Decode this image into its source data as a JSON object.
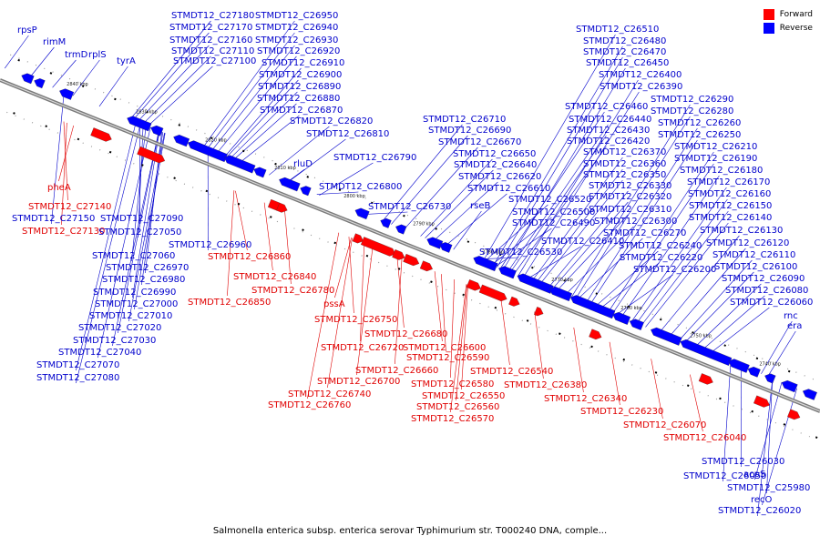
{
  "legend": {
    "forward_label": "Forward",
    "reverse_label": "Reverse",
    "forward_color": "#ff0000",
    "reverse_color": "#0000ff"
  },
  "caption": "Salmonella enterica subsp. enterica serovar Typhimurium str. T000240 DNA, comple...",
  "ticks": [
    "2840 kbp",
    "2830 kbp",
    "2820 kbp",
    "2810 kbp",
    "2800 kbp",
    "2790 kbp",
    "2780 kbp",
    "2770 kbp",
    "2760 kbp",
    "2750 kbp",
    "2740 kbp",
    "2730 kbp",
    "2720 kbp"
  ],
  "labels": [
    {
      "t": "rpsP",
      "s": "rev"
    },
    {
      "t": "rimM",
      "s": "rev"
    },
    {
      "t": "trmD",
      "s": "rev"
    },
    {
      "t": "rplS",
      "s": "rev"
    },
    {
      "t": "tyrA",
      "s": "rev"
    },
    {
      "t": "STMDT12_C27180",
      "s": "rev"
    },
    {
      "t": "STMDT12_C27170",
      "s": "rev"
    },
    {
      "t": "STMDT12_C27160",
      "s": "rev"
    },
    {
      "t": "STMDT12_C27110",
      "s": "rev"
    },
    {
      "t": "STMDT12_C27100",
      "s": "rev"
    },
    {
      "t": "STMDT12_C26950",
      "s": "rev"
    },
    {
      "t": "STMDT12_C26940",
      "s": "rev"
    },
    {
      "t": "STMDT12_C26930",
      "s": "rev"
    },
    {
      "t": "STMDT12_C26920",
      "s": "rev"
    },
    {
      "t": "STMDT12_C26910",
      "s": "rev"
    },
    {
      "t": "STMDT12_C26900",
      "s": "rev"
    },
    {
      "t": "STMDT12_C26890",
      "s": "rev"
    },
    {
      "t": "STMDT12_C26880",
      "s": "rev"
    },
    {
      "t": "STMDT12_C26870",
      "s": "rev"
    },
    {
      "t": "STMDT12_C26820",
      "s": "rev"
    },
    {
      "t": "STMDT12_C26810",
      "s": "rev"
    },
    {
      "t": "rluD",
      "s": "rev"
    },
    {
      "t": "STMDT12_C26790",
      "s": "rev"
    },
    {
      "t": "STMDT12_C26800",
      "s": "rev"
    },
    {
      "t": "STMDT12_C26730",
      "s": "rev"
    },
    {
      "t": "STMDT12_C26710",
      "s": "rev"
    },
    {
      "t": "STMDT12_C26690",
      "s": "rev"
    },
    {
      "t": "STMDT12_C26670",
      "s": "rev"
    },
    {
      "t": "STMDT12_C26650",
      "s": "rev"
    },
    {
      "t": "STMDT12_C26640",
      "s": "rev"
    },
    {
      "t": "STMDT12_C26620",
      "s": "rev"
    },
    {
      "t": "STMDT12_C26610",
      "s": "rev"
    },
    {
      "t": "rseB",
      "s": "rev"
    },
    {
      "t": "STMDT12_C26520",
      "s": "rev"
    },
    {
      "t": "STMDT12_C26500",
      "s": "rev"
    },
    {
      "t": "STMDT12_C26490",
      "s": "rev"
    },
    {
      "t": "STMDT12_C26530",
      "s": "rev"
    },
    {
      "t": "STMDT12_C26510",
      "s": "rev"
    },
    {
      "t": "STMDT12_C26480",
      "s": "rev"
    },
    {
      "t": "STMDT12_C26470",
      "s": "rev"
    },
    {
      "t": "STMDT12_C26450",
      "s": "rev"
    },
    {
      "t": "STMDT12_C26400",
      "s": "rev"
    },
    {
      "t": "STMDT12_C26390",
      "s": "rev"
    },
    {
      "t": "STMDT12_C26460",
      "s": "rev"
    },
    {
      "t": "STMDT12_C26440",
      "s": "rev"
    },
    {
      "t": "STMDT12_C26430",
      "s": "rev"
    },
    {
      "t": "STMDT12_C26420",
      "s": "rev"
    },
    {
      "t": "STMDT12_C26370",
      "s": "rev"
    },
    {
      "t": "STMDT12_C26360",
      "s": "rev"
    },
    {
      "t": "STMDT12_C26350",
      "s": "rev"
    },
    {
      "t": "STMDT12_C26330",
      "s": "rev"
    },
    {
      "t": "STMDT12_C26320",
      "s": "rev"
    },
    {
      "t": "STMDT12_C26310",
      "s": "rev"
    },
    {
      "t": "STMDT12_C26300",
      "s": "rev"
    },
    {
      "t": "STMDT12_C26410",
      "s": "rev"
    },
    {
      "t": "STMDT12_C26270",
      "s": "rev"
    },
    {
      "t": "STMDT12_C26240",
      "s": "rev"
    },
    {
      "t": "STMDT12_C26220",
      "s": "rev"
    },
    {
      "t": "STMDT12_C26200",
      "s": "rev"
    },
    {
      "t": "STMDT12_C26290",
      "s": "rev"
    },
    {
      "t": "STMDT12_C26280",
      "s": "rev"
    },
    {
      "t": "STMDT12_C26260",
      "s": "rev"
    },
    {
      "t": "STMDT12_C26250",
      "s": "rev"
    },
    {
      "t": "STMDT12_C26210",
      "s": "rev"
    },
    {
      "t": "STMDT12_C26190",
      "s": "rev"
    },
    {
      "t": "STMDT12_C26180",
      "s": "rev"
    },
    {
      "t": "STMDT12_C26170",
      "s": "rev"
    },
    {
      "t": "STMDT12_C26160",
      "s": "rev"
    },
    {
      "t": "STMDT12_C26150",
      "s": "rev"
    },
    {
      "t": "STMDT12_C26140",
      "s": "rev"
    },
    {
      "t": "STMDT12_C26130",
      "s": "rev"
    },
    {
      "t": "STMDT12_C26120",
      "s": "rev"
    },
    {
      "t": "STMDT12_C26110",
      "s": "rev"
    },
    {
      "t": "STMDT12_C26100",
      "s": "rev"
    },
    {
      "t": "STMDT12_C26090",
      "s": "rev"
    },
    {
      "t": "STMDT12_C26080",
      "s": "rev"
    },
    {
      "t": "STMDT12_C26060",
      "s": "rev"
    },
    {
      "t": "rnc",
      "s": "rev"
    },
    {
      "t": "era",
      "s": "rev"
    },
    {
      "t": "pheA",
      "s": "fwd"
    },
    {
      "t": "STMDT12_C27140",
      "s": "fwd"
    },
    {
      "t": "STMDT12_C27150",
      "s": "rev"
    },
    {
      "t": "STMDT12_C27130",
      "s": "fwd"
    },
    {
      "t": "STMDT12_C27090",
      "s": "rev"
    },
    {
      "t": "STMDT12_C27050",
      "s": "rev"
    },
    {
      "t": "STMDT12_C26960",
      "s": "rev"
    },
    {
      "t": "STMDT12_C27060",
      "s": "rev"
    },
    {
      "t": "STMDT12_C26970",
      "s": "rev"
    },
    {
      "t": "STMDT12_C26980",
      "s": "rev"
    },
    {
      "t": "STMDT12_C26990",
      "s": "rev"
    },
    {
      "t": "STMDT12_C27000",
      "s": "rev"
    },
    {
      "t": "STMDT12_C27010",
      "s": "rev"
    },
    {
      "t": "STMDT12_C27020",
      "s": "rev"
    },
    {
      "t": "STMDT12_C27030",
      "s": "rev"
    },
    {
      "t": "STMDT12_C27040",
      "s": "rev"
    },
    {
      "t": "STMDT12_C27070",
      "s": "rev"
    },
    {
      "t": "STMDT12_C27080",
      "s": "rev"
    },
    {
      "t": "STMDT12_C26860",
      "s": "fwd"
    },
    {
      "t": "STMDT12_C26840",
      "s": "fwd"
    },
    {
      "t": "STMDT12_C26780",
      "s": "fwd"
    },
    {
      "t": "STMDT12_C26850",
      "s": "fwd"
    },
    {
      "t": "pssA",
      "s": "fwd"
    },
    {
      "t": "STMDT12_C26750",
      "s": "fwd"
    },
    {
      "t": "STMDT12_C26680",
      "s": "fwd"
    },
    {
      "t": "STMDT12_C26720",
      "s": "fwd"
    },
    {
      "t": "STMDT12_C26600",
      "s": "fwd"
    },
    {
      "t": "STMDT12_C26660",
      "s": "fwd"
    },
    {
      "t": "STMDT12_C26590",
      "s": "fwd"
    },
    {
      "t": "STMDT12_C26540",
      "s": "fwd"
    },
    {
      "t": "STMDT12_C26700",
      "s": "fwd"
    },
    {
      "t": "STMDT12_C26580",
      "s": "fwd"
    },
    {
      "t": "STMDT12_C26380",
      "s": "fwd"
    },
    {
      "t": "STMDT12_C26740",
      "s": "fwd"
    },
    {
      "t": "STMDT12_C26550",
      "s": "fwd"
    },
    {
      "t": "STMDT12_C26340",
      "s": "fwd"
    },
    {
      "t": "STMDT12_C26760",
      "s": "fwd"
    },
    {
      "t": "STMDT12_C26560",
      "s": "fwd"
    },
    {
      "t": "STMDT12_C26230",
      "s": "fwd"
    },
    {
      "t": "STMDT12_C26570",
      "s": "fwd"
    },
    {
      "t": "STMDT12_C26070",
      "s": "fwd"
    },
    {
      "t": "STMDT12_C26040",
      "s": "fwd"
    },
    {
      "t": "STMDT12_C26030",
      "s": "rev"
    },
    {
      "t": "STMDT12_C26050",
      "s": "rev"
    },
    {
      "t": "acpS",
      "s": "rev"
    },
    {
      "t": "STMDT12_C25980",
      "s": "rev"
    },
    {
      "t": "recO",
      "s": "rev"
    },
    {
      "t": "STMDT12_C26020",
      "s": "rev"
    }
  ]
}
